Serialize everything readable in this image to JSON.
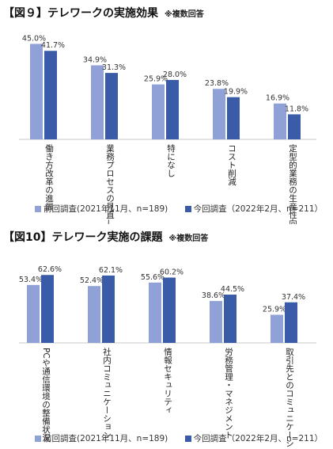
{
  "chart_data": [
    {
      "type": "bar",
      "title": "【図９】テレワークの実施効果",
      "note": "※複数回答",
      "categories": [
        "働き方改革の進展",
        "業務プロセスの見直し",
        "特になし",
        "コスト削減",
        "定型的業務の生産性向上"
      ],
      "series": [
        {
          "name": "前回調査(2021年11月、n=189)",
          "values": [
            45.0,
            34.9,
            25.9,
            23.8,
            16.9
          ]
        },
        {
          "name": "今回調査（2022年2月、n=211）",
          "values": [
            41.7,
            31.3,
            28.0,
            19.9,
            11.8
          ]
        }
      ],
      "value_suffix": "%",
      "ylim": [
        0,
        50
      ],
      "grid": false,
      "legend": "bottom"
    },
    {
      "type": "bar",
      "title": "【図10】テレワーク実施の課題",
      "note": "※複数回答",
      "categories": [
        "PCや通信環境の整備状況",
        "社内コミュニケーション",
        "情報セキュリティ",
        "労務管理・マネジメント",
        "取引先とのコミュニケーション"
      ],
      "series": [
        {
          "name": "前回調査(2021年11月、n=189)",
          "values": [
            53.4,
            52.4,
            55.6,
            38.6,
            25.9
          ]
        },
        {
          "name": "今回調査（2022年2月、n=211）",
          "values": [
            62.6,
            62.1,
            60.2,
            44.5,
            37.4
          ]
        }
      ],
      "value_suffix": "%",
      "ylim": [
        0,
        70
      ],
      "grid": false,
      "legend": "bottom"
    }
  ],
  "colors": {
    "prev": "#8fa1d6",
    "curr": "#3a5ba8",
    "axis": "#c8c8c8"
  }
}
